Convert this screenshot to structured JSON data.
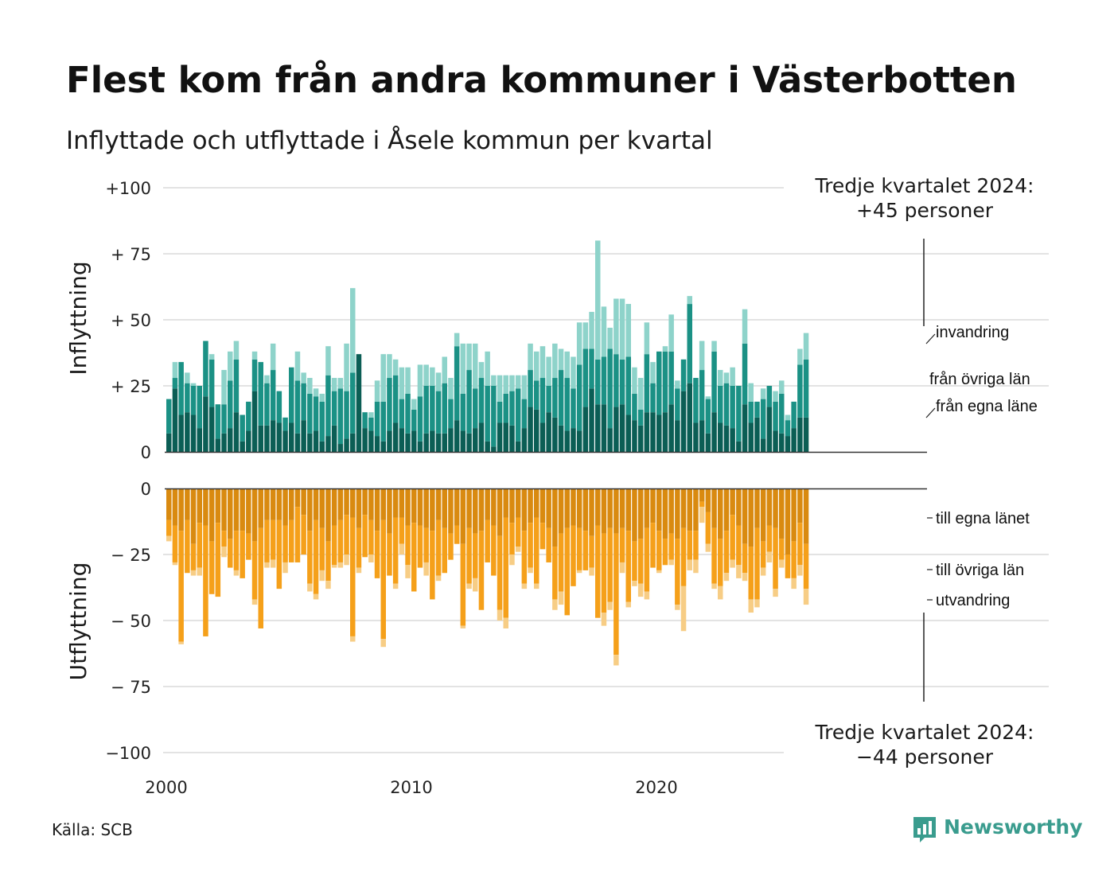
{
  "chart_data": {
    "type": "bar",
    "title": "Flest kom från andra kommuner i Västerbotten",
    "subtitle": "Inflyttade och utflyttade i Åsele kommun per kvartal",
    "source": "Källa: SCB",
    "brand": "Newsworthy",
    "x_ticks": [
      "2000",
      "2010",
      "2020"
    ],
    "inflow": {
      "axis_title": "Inflyttning",
      "ylim": [
        0,
        100
      ],
      "y_ticks": [
        "0",
        "+ 25",
        "+ 50",
        "+ 75",
        "+100"
      ],
      "annotation": [
        "Tredje kvartalet 2024:",
        "+45 personer"
      ],
      "series": [
        {
          "name": "från egna läne",
          "color": "#0b5e55",
          "values": [
            7,
            24,
            14,
            15,
            14,
            9,
            21,
            17,
            5,
            7,
            9,
            15,
            4,
            8,
            23,
            10,
            10,
            12,
            11,
            8,
            11,
            7,
            12,
            7,
            8,
            4,
            6,
            10,
            3,
            5,
            7,
            37,
            9,
            8,
            6,
            4,
            8,
            11,
            9,
            7,
            8,
            4,
            7,
            8,
            7,
            7,
            9,
            12,
            8,
            7,
            9,
            11,
            4,
            2,
            11,
            11,
            10,
            4,
            9,
            17,
            16,
            11,
            15,
            13,
            10,
            8,
            9,
            8,
            17,
            24,
            18,
            18,
            9,
            17,
            18,
            14,
            12,
            10,
            15,
            15,
            14,
            15,
            18,
            12,
            23,
            26,
            11,
            12,
            7,
            15,
            11,
            10,
            9,
            4,
            18,
            11,
            13,
            5,
            17,
            8,
            7,
            6,
            9,
            13,
            13
          ]
        },
        {
          "name": "från övriga län",
          "color": "#1b9185",
          "values": [
            13,
            4,
            20,
            11,
            11,
            16,
            21,
            18,
            13,
            11,
            18,
            20,
            10,
            11,
            12,
            24,
            16,
            19,
            12,
            5,
            21,
            20,
            14,
            15,
            13,
            15,
            23,
            13,
            21,
            18,
            23,
            0,
            6,
            5,
            13,
            15,
            20,
            18,
            11,
            15,
            8,
            17,
            18,
            17,
            16,
            19,
            11,
            28,
            14,
            24,
            15,
            17,
            21,
            23,
            8,
            11,
            13,
            20,
            11,
            14,
            11,
            17,
            10,
            15,
            21,
            20,
            15,
            25,
            22,
            15,
            17,
            18,
            30,
            20,
            17,
            22,
            10,
            6,
            22,
            11,
            24,
            23,
            20,
            12,
            12,
            30,
            17,
            19,
            13,
            23,
            14,
            16,
            16,
            21,
            23,
            8,
            6,
            15,
            8,
            11,
            15,
            6,
            10,
            20,
            22
          ]
        },
        {
          "name": "invandring",
          "color": "#8ed3ca",
          "values": [
            0,
            6,
            0,
            4,
            1,
            0,
            0,
            2,
            0,
            13,
            11,
            7,
            0,
            0,
            3,
            0,
            3,
            10,
            0,
            0,
            0,
            11,
            4,
            6,
            3,
            3,
            11,
            5,
            4,
            18,
            32,
            0,
            0,
            2,
            8,
            18,
            9,
            6,
            12,
            10,
            4,
            12,
            8,
            7,
            7,
            10,
            8,
            5,
            19,
            10,
            17,
            6,
            13,
            4,
            10,
            7,
            6,
            5,
            9,
            10,
            11,
            12,
            11,
            13,
            8,
            10,
            12,
            16,
            10,
            14,
            45,
            19,
            8,
            21,
            23,
            20,
            10,
            12,
            12,
            8,
            0,
            2,
            14,
            3,
            0,
            3,
            0,
            11,
            1,
            4,
            6,
            4,
            7,
            0,
            13,
            7,
            0,
            4,
            0,
            4,
            5,
            2,
            0,
            6,
            10
          ]
        }
      ]
    },
    "outflow": {
      "axis_title": "Utflyttning",
      "ylim": [
        -100,
        0
      ],
      "y_ticks": [
        "0",
        "− 25",
        "− 50",
        "− 75",
        "−100"
      ],
      "annotation": [
        "Tredje kvartalet 2024:",
        "−44 personer"
      ],
      "series": [
        {
          "name": "till egna länet",
          "color": "#d98a10",
          "values": [
            -12,
            -14,
            -16,
            -12,
            -21,
            -13,
            -14,
            -20,
            -13,
            -16,
            -19,
            -16,
            -16,
            -17,
            -20,
            -15,
            -12,
            -12,
            -12,
            -14,
            -12,
            -7,
            -10,
            -16,
            -12,
            -15,
            -20,
            -14,
            -12,
            -10,
            -11,
            -15,
            -10,
            -12,
            -16,
            -12,
            -17,
            -11,
            -11,
            -14,
            -13,
            -14,
            -15,
            -16,
            -12,
            -15,
            -17,
            -14,
            -21,
            -15,
            -17,
            -16,
            -12,
            -14,
            -18,
            -11,
            -13,
            -11,
            -16,
            -13,
            -11,
            -13,
            -15,
            -22,
            -17,
            -15,
            -14,
            -15,
            -16,
            -18,
            -14,
            -17,
            -15,
            -17,
            -15,
            -16,
            -20,
            -19,
            -15,
            -13,
            -16,
            -19,
            -17,
            -19,
            -15,
            -16,
            -16,
            -5,
            -9,
            -15,
            -19,
            -16,
            -10,
            -14,
            -21,
            -22,
            -15,
            -20,
            -14,
            -15,
            -19,
            -25,
            -20,
            -13,
            -21
          ]
        },
        {
          "name": "till övriga län",
          "color": "#f5a01a",
          "values": [
            -6,
            -14,
            -42,
            -20,
            -10,
            -17,
            -42,
            -20,
            -28,
            -6,
            -11,
            -15,
            -18,
            -10,
            -22,
            -38,
            -16,
            -15,
            -26,
            -14,
            -16,
            -21,
            -15,
            -20,
            -28,
            -16,
            -15,
            -15,
            -16,
            -15,
            -45,
            -15,
            -16,
            -13,
            -18,
            -45,
            -16,
            -25,
            -10,
            -15,
            -26,
            -16,
            -13,
            -26,
            -21,
            -17,
            -10,
            -7,
            -31,
            -21,
            -17,
            -30,
            -16,
            -19,
            -28,
            -38,
            -12,
            -11,
            -20,
            -17,
            -25,
            -10,
            -13,
            -20,
            -22,
            -33,
            -23,
            -16,
            -15,
            -12,
            -35,
            -30,
            -28,
            -46,
            -13,
            -27,
            -15,
            -17,
            -24,
            -17,
            -15,
            -10,
            -10,
            -25,
            -22,
            -11,
            -11,
            -2,
            -12,
            -21,
            -18,
            -16,
            -17,
            -15,
            -11,
            -20,
            -27,
            -10,
            -10,
            -23,
            -8,
            -9,
            -14,
            -16,
            -17
          ]
        },
        {
          "name": "utvandring",
          "color": "#f7cd85",
          "values": [
            -2,
            -1,
            -1,
            0,
            -2,
            -3,
            0,
            0,
            0,
            -4,
            0,
            -2,
            0,
            0,
            -2,
            0,
            -2,
            -3,
            0,
            -4,
            0,
            0,
            0,
            -3,
            -2,
            -4,
            -3,
            -1,
            -2,
            -4,
            -2,
            -2,
            0,
            -3,
            0,
            -3,
            0,
            -2,
            -4,
            -5,
            0,
            0,
            -5,
            0,
            -2,
            0,
            0,
            0,
            -1,
            -2,
            -5,
            0,
            0,
            0,
            -4,
            -4,
            -4,
            -2,
            -2,
            -2,
            -2,
            0,
            0,
            -4,
            -5,
            0,
            0,
            -1,
            0,
            -3,
            0,
            -5,
            -3,
            -4,
            -4,
            -2,
            -2,
            -5,
            -3,
            0,
            -1,
            0,
            -2,
            -2,
            -17,
            -4,
            -5,
            -6,
            -3,
            -2,
            -5,
            -3,
            -3,
            -5,
            -3,
            -5,
            -3,
            -3,
            -4,
            -3,
            -3,
            0,
            -4,
            -4,
            -6
          ]
        }
      ]
    }
  }
}
